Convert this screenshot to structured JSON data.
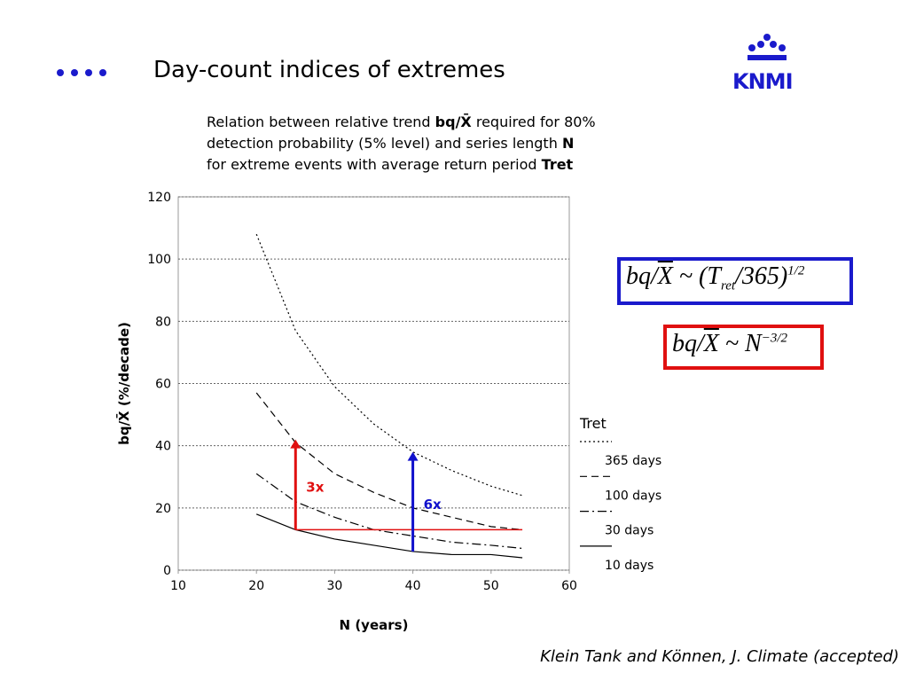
{
  "header": {
    "title": "Day-count indices of extremes",
    "logo": "KNMI"
  },
  "description": [
    [
      {
        "text": "Relation between relative trend ",
        "bold": false
      },
      {
        "text": "bq/X̄",
        "bold": true
      },
      {
        "text": " required for 80%",
        "bold": false
      }
    ],
    [
      {
        "text": "detection probability (5% level) and series length ",
        "bold": false
      },
      {
        "text": "N",
        "bold": true
      }
    ],
    [
      {
        "text": "for extreme events with average return period ",
        "bold": false
      },
      {
        "text": "Tret",
        "bold": true
      }
    ]
  ],
  "formulas": [
    {
      "color": "#1a1acc",
      "parts": [
        {
          "text": "bq/"
        },
        {
          "text": "X",
          "overline": true
        },
        {
          "text": " ~ ("
        },
        {
          "text": "T"
        },
        {
          "text": "ret",
          "sub": true
        },
        {
          "text": "/365)"
        },
        {
          "text": "1/2",
          "sup": true
        }
      ]
    },
    {
      "color": "#e01010",
      "parts": [
        {
          "text": "bq/"
        },
        {
          "text": "X",
          "overline": true
        },
        {
          "text": " ~ N"
        },
        {
          "text": "−3/2",
          "sup": true
        }
      ]
    }
  ],
  "citation": "Klein Tank and Können, J. Climate (accepted)",
  "chart_data": {
    "type": "line",
    "x_label": "N (years)",
    "y_label": "bq/X̄ (%/decade)",
    "x": [
      20,
      25,
      30,
      35,
      40,
      45,
      50,
      54
    ],
    "series": [
      {
        "name": "365 days",
        "color": "#000000",
        "dash": "dotted",
        "values": [
          108,
          77,
          59,
          47,
          38,
          32,
          27,
          24
        ]
      },
      {
        "name": "100 days",
        "color": "#000000",
        "dash": "dashed",
        "values": [
          57,
          41,
          31,
          25,
          20,
          17,
          14,
          13
        ]
      },
      {
        "name": "30 days",
        "color": "#000000",
        "dash": "dashdot",
        "values": [
          31,
          22,
          17,
          13,
          11,
          9,
          8,
          7
        ]
      },
      {
        "name": "10 days",
        "color": "#000000",
        "dash": "solid",
        "values": [
          18,
          13,
          10,
          8,
          6,
          5,
          5,
          4
        ]
      }
    ],
    "legend_title": "Tret",
    "xlim": [
      10,
      60
    ],
    "xticks": [
      10,
      20,
      30,
      40,
      50,
      60
    ],
    "ylim": [
      0,
      120
    ],
    "yticks": [
      0,
      20,
      40,
      60,
      80,
      100,
      120
    ],
    "grid": "y",
    "reference_line": {
      "color": "#e01010",
      "y": 13,
      "x_from": 25,
      "x_to": 54
    },
    "annotations": [
      {
        "text": "3x",
        "color": "#e01010",
        "x": 25,
        "y_from": 13,
        "y_to": 42
      },
      {
        "text": "6x",
        "color": "#1010cc",
        "x": 40,
        "y_from": 6,
        "y_to": 38
      }
    ]
  }
}
